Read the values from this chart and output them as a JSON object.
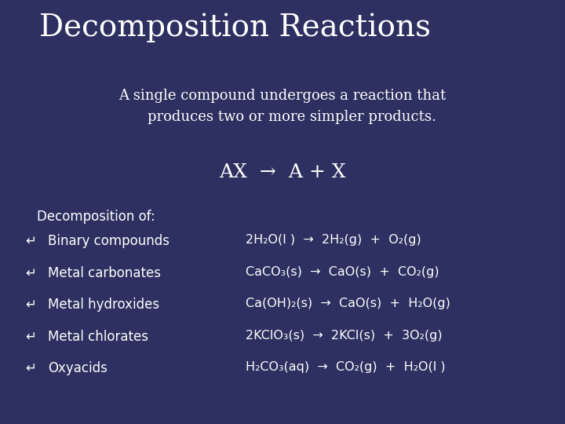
{
  "title": "Decomposition Reactions",
  "subtitle": "A single compound undergoes a reaction that\n    produces two or more simpler products.",
  "formula_line": "AX  →  A + X",
  "section_header": "Decomposition of:",
  "bullets": [
    "Binary compounds",
    "Metal carbonates",
    "Metal hydroxides",
    "Metal chlorates",
    "Oxyacids"
  ],
  "equations": [
    "2H₂O(l )  →  2H₂(g)  +  O₂(g)",
    "CaCO₃(s)  →  CaO(s)  +  CO₂(g)",
    "Ca(OH)₂(s)  →  CaO(s)  +  H₂O(g)",
    "2KClO₃(s)  →  2KCl(s)  +  3O₂(g)",
    "H₂CO₃(aq)  →  CO₂(g)  +  H₂O(l )"
  ],
  "bg_color": "#2d3060",
  "text_color": "#ffffff",
  "title_fontsize": 28,
  "subtitle_fontsize": 13,
  "formula_fontsize": 18,
  "section_fontsize": 12,
  "bullet_fontsize": 12,
  "eq_fontsize": 11.5
}
